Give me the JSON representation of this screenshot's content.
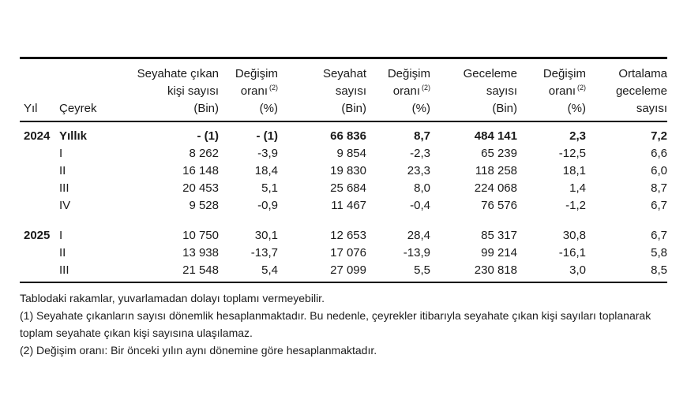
{
  "table": {
    "columns": [
      {
        "id": "yil",
        "align": "left",
        "lines": [
          "Yıl"
        ]
      },
      {
        "id": "ceyrek",
        "align": "left",
        "lines": [
          "Çeyrek"
        ]
      },
      {
        "id": "seyahate-cikan-kisi-sayisi",
        "align": "right",
        "lines": [
          "Seyahate çıkan",
          "kişi sayısı",
          "(Bin)"
        ]
      },
      {
        "id": "degisim-orani-kisi",
        "align": "right",
        "lines": [
          "Değişim",
          "oranı",
          "(%)"
        ],
        "sup": {
          "line": 1,
          "text": "(2)"
        }
      },
      {
        "id": "seyahat-sayisi",
        "align": "right",
        "lines": [
          "Seyahat",
          "sayısı",
          "(Bin)"
        ]
      },
      {
        "id": "degisim-orani-seyahat",
        "align": "right",
        "lines": [
          "Değişim",
          "oranı",
          "(%)"
        ],
        "sup": {
          "line": 1,
          "text": "(2)"
        }
      },
      {
        "id": "geceleme-sayisi",
        "align": "right",
        "lines": [
          "Geceleme",
          "sayısı",
          "(Bin)"
        ]
      },
      {
        "id": "degisim-orani-geceleme",
        "align": "right",
        "lines": [
          "Değişim",
          "oranı",
          "(%)"
        ],
        "sup": {
          "line": 1,
          "text": "(2)"
        }
      },
      {
        "id": "ortalama-geceleme-sayisi",
        "align": "right",
        "lines": [
          "Ortalama",
          "geceleme",
          "sayısı"
        ]
      }
    ],
    "rows": [
      {
        "year": "2024",
        "quarter": "Yıllık",
        "bold": true,
        "spacer_before": false,
        "values": [
          "- (1)",
          "- (1)",
          "66 836",
          "8,7",
          "484 141",
          "2,3",
          "7,2"
        ]
      },
      {
        "year": "",
        "quarter": "I",
        "bold": false,
        "spacer_before": false,
        "values": [
          "8 262",
          "-3,9",
          "9 854",
          "-2,3",
          "65 239",
          "-12,5",
          "6,6"
        ]
      },
      {
        "year": "",
        "quarter": "II",
        "bold": false,
        "spacer_before": false,
        "values": [
          "16 148",
          "18,4",
          "19 830",
          "23,3",
          "118 258",
          "18,1",
          "6,0"
        ]
      },
      {
        "year": "",
        "quarter": "III",
        "bold": false,
        "spacer_before": false,
        "values": [
          "20 453",
          "5,1",
          "25 684",
          "8,0",
          "224 068",
          "1,4",
          "8,7"
        ]
      },
      {
        "year": "",
        "quarter": "IV",
        "bold": false,
        "spacer_before": false,
        "values": [
          "9 528",
          "-0,9",
          "11 467",
          "-0,4",
          "76 576",
          "-1,2",
          "6,7"
        ]
      },
      {
        "year": "2025",
        "quarter": "I",
        "bold": false,
        "spacer_before": true,
        "values": [
          "10 750",
          "30,1",
          "12 653",
          "28,4",
          "85 317",
          "30,8",
          "6,7"
        ]
      },
      {
        "year": "",
        "quarter": "II",
        "bold": false,
        "spacer_before": false,
        "values": [
          "13 938",
          "-13,7",
          "17 076",
          "-13,9",
          "99 214",
          "-16,1",
          "5,8"
        ]
      },
      {
        "year": "",
        "quarter": "III",
        "bold": false,
        "spacer_before": false,
        "values": [
          "21 548",
          "5,4",
          "27 099",
          "5,5",
          "230 818",
          "3,0",
          "8,5"
        ]
      }
    ]
  },
  "footnotes": [
    "Tablodaki rakamlar, yuvarlamadan dolayı toplamı vermeyebilir.",
    "(1) Seyahate çıkanların sayısı dönemlik hesaplanmaktadır. Bu nedenle, çeyrekler itibarıyla seyahate çıkan kişi sayıları toplanarak toplam seyahate çıkan kişi sayısına ulaşılamaz.",
    "(2) Değişim oranı: Bir önceki yılın aynı dönemine göre hesaplanmaktadır."
  ]
}
